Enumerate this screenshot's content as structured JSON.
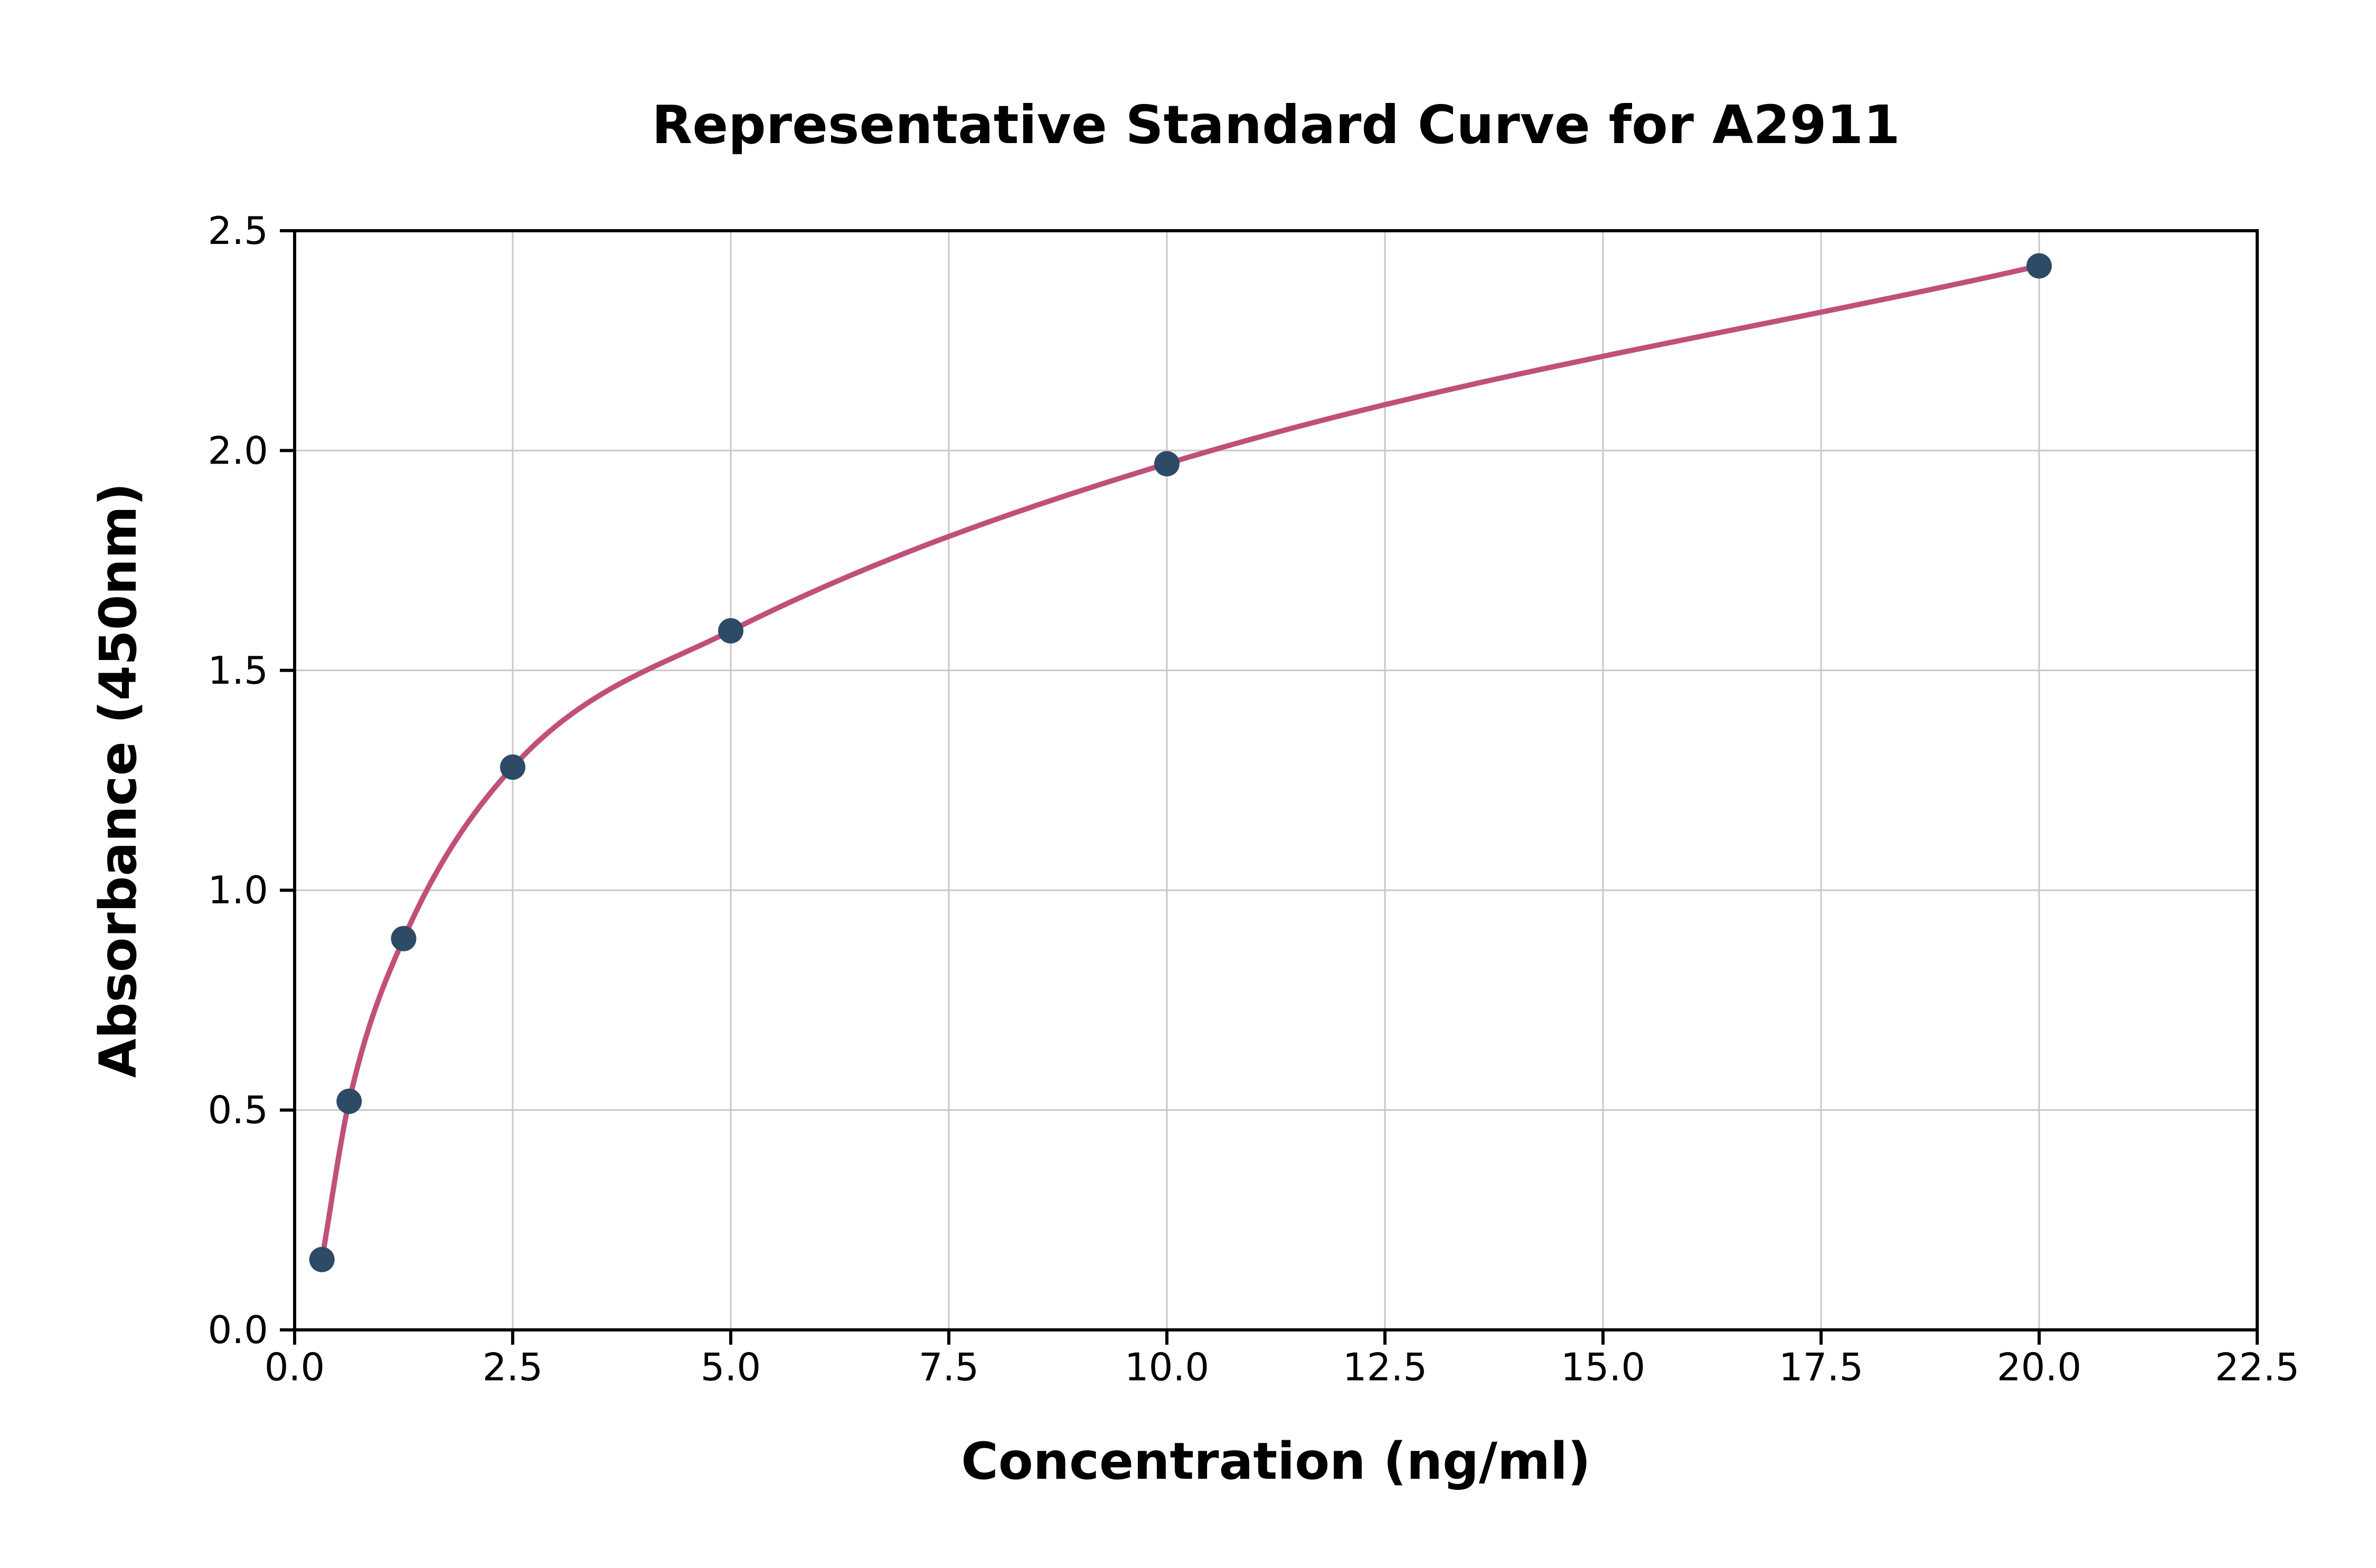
{
  "chart_data": {
    "type": "scatter",
    "title": "Representative Standard Curve for A2911",
    "xlabel": "Concentration (ng/ml)",
    "ylabel": "Absorbance (450nm)",
    "xlim": [
      0,
      22.5
    ],
    "ylim": [
      0,
      2.5
    ],
    "grid": true,
    "legend": "none",
    "x_ticks": [
      0.0,
      2.5,
      5.0,
      7.5,
      10.0,
      12.5,
      15.0,
      17.5,
      20.0,
      22.5
    ],
    "x_tick_labels": [
      "0.0",
      "2.5",
      "5.0",
      "7.5",
      "10.0",
      "12.5",
      "15.0",
      "17.5",
      "20.0",
      "22.5"
    ],
    "y_ticks": [
      0.0,
      0.5,
      1.0,
      1.5,
      2.0,
      2.5
    ],
    "y_tick_labels": [
      "0.0",
      "0.5",
      "1.0",
      "1.5",
      "2.0",
      "2.5"
    ],
    "points": [
      {
        "x": 0.313,
        "y": 0.16
      },
      {
        "x": 0.625,
        "y": 0.52
      },
      {
        "x": 1.25,
        "y": 0.89
      },
      {
        "x": 2.5,
        "y": 1.28
      },
      {
        "x": 5.0,
        "y": 1.59
      },
      {
        "x": 10.0,
        "y": 1.97
      },
      {
        "x": 20.0,
        "y": 2.42
      }
    ],
    "curve_color": "#c0507a",
    "point_color": "#2d4a66",
    "grid_color": "#c8c8c8",
    "axis_color": "#000000",
    "background_color": "#ffffff"
  }
}
